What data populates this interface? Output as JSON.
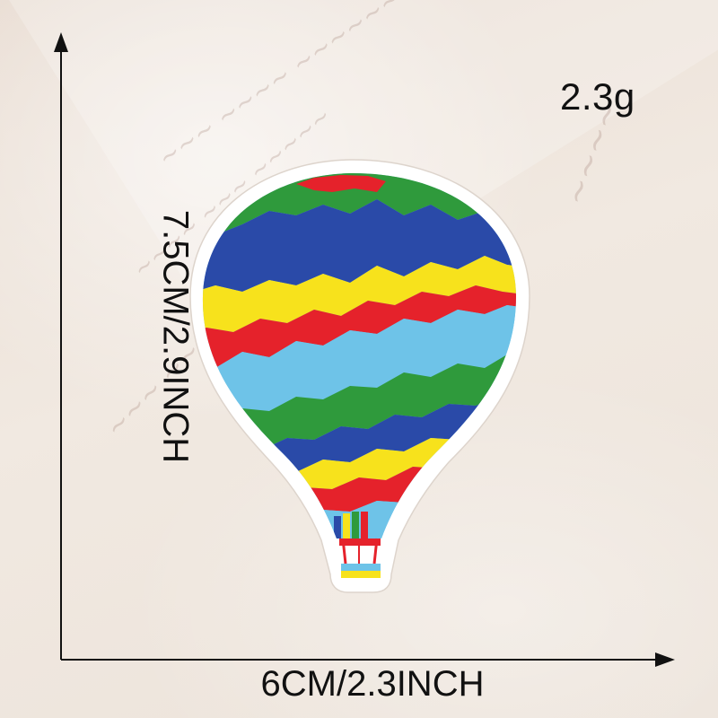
{
  "weight_label": "2.3g",
  "width_label": "6CM/2.3INCH",
  "height_label": "7.5CM/2.9INCH",
  "colors": {
    "red": "#e5222b",
    "yellow": "#f7e21c",
    "blue": "#2a4aa8",
    "green": "#2f9a3c",
    "sky": "#6ec3e8",
    "border": "#ffffff",
    "background": "#efe6dd"
  },
  "icons": [
    "hot-air-balloon-patch",
    "arrow-up",
    "arrow-right"
  ]
}
